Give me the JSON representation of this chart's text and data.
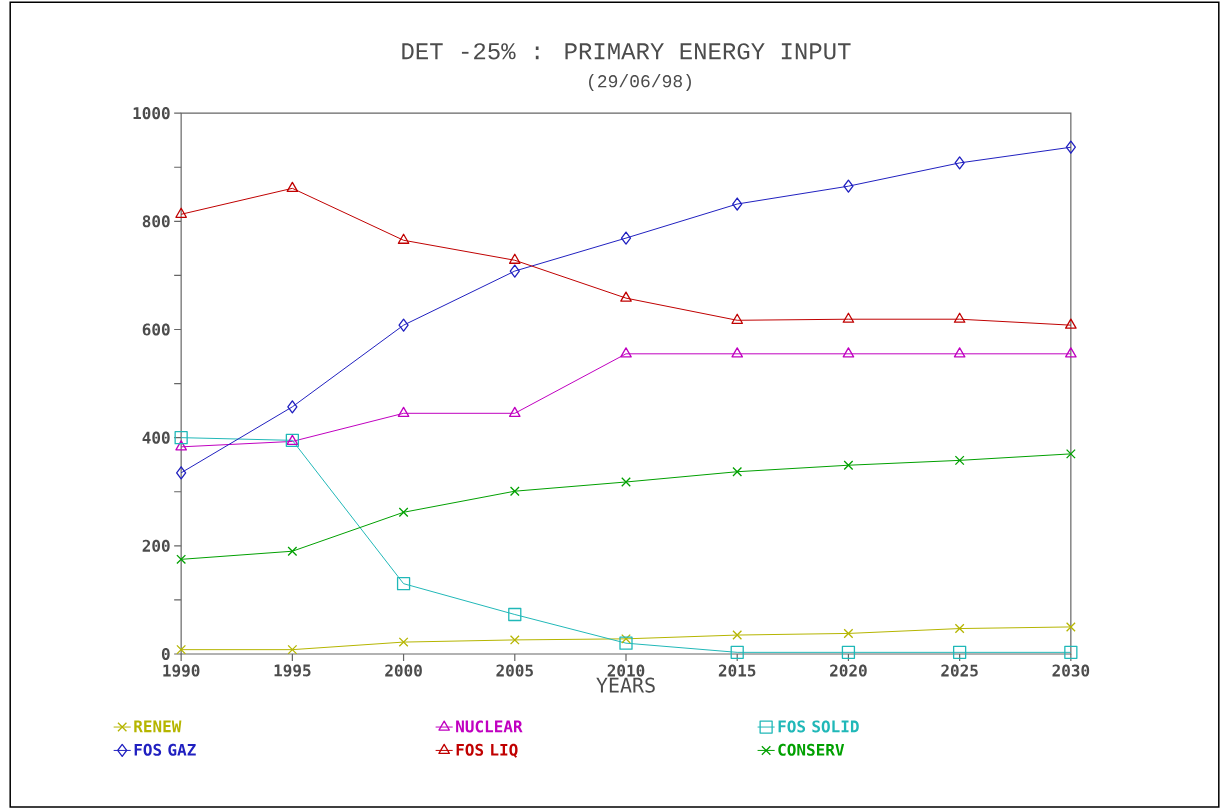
{
  "chart_data": {
    "type": "line",
    "title": "DET -25% : PRIMARY ENERGY INPUT",
    "subtitle": "(29/06/98)",
    "xlabel": "YEARS",
    "x": [
      1990,
      1995,
      2000,
      2005,
      2010,
      2015,
      2020,
      2025,
      2030
    ],
    "xlim": [
      1990,
      2030
    ],
    "xticks": [
      1990,
      1995,
      2000,
      2005,
      2010,
      2015,
      2020,
      2025,
      2030
    ],
    "ylim": [
      0,
      1000
    ],
    "yticks": [
      0,
      {
        "value": 100,
        "label": null
      },
      200,
      {
        "value": 300,
        "label": null
      },
      400,
      {
        "value": 500,
        "label": null
      },
      600,
      {
        "value": 700,
        "label": null
      },
      800,
      {
        "value": 900,
        "label": null
      },
      1000
    ],
    "grid": false,
    "legend": "bottom",
    "line_style": "solid",
    "series": [
      {
        "name": "RENEW",
        "color": "#b5b500",
        "marker": "cross",
        "values": [
          8,
          8,
          22,
          26,
          28,
          35,
          38,
          47,
          50
        ]
      },
      {
        "name": "NUCLEAR",
        "color": "#c000c0",
        "marker": "triangle",
        "values": [
          383,
          393,
          445,
          445,
          555,
          555,
          555,
          555,
          555
        ]
      },
      {
        "name": "FOS SOLID",
        "color": "#20b8b8",
        "marker": "square",
        "values": [
          400,
          395,
          130,
          73,
          20,
          3,
          3,
          3,
          3
        ]
      },
      {
        "name": "FOS GAZ",
        "color": "#2020c0",
        "marker": "diamond",
        "values": [
          335,
          457,
          608,
          708,
          769,
          832,
          865,
          908,
          937
        ]
      },
      {
        "name": "FOS LIQ",
        "color": "#c00000",
        "marker": "triangle",
        "values": [
          813,
          861,
          765,
          728,
          658,
          617,
          619,
          619,
          608
        ]
      },
      {
        "name": "CONSERV",
        "color": "#00a000",
        "marker": "cross",
        "values": [
          175,
          190,
          262,
          301,
          318,
          337,
          349,
          358,
          370
        ]
      }
    ]
  }
}
